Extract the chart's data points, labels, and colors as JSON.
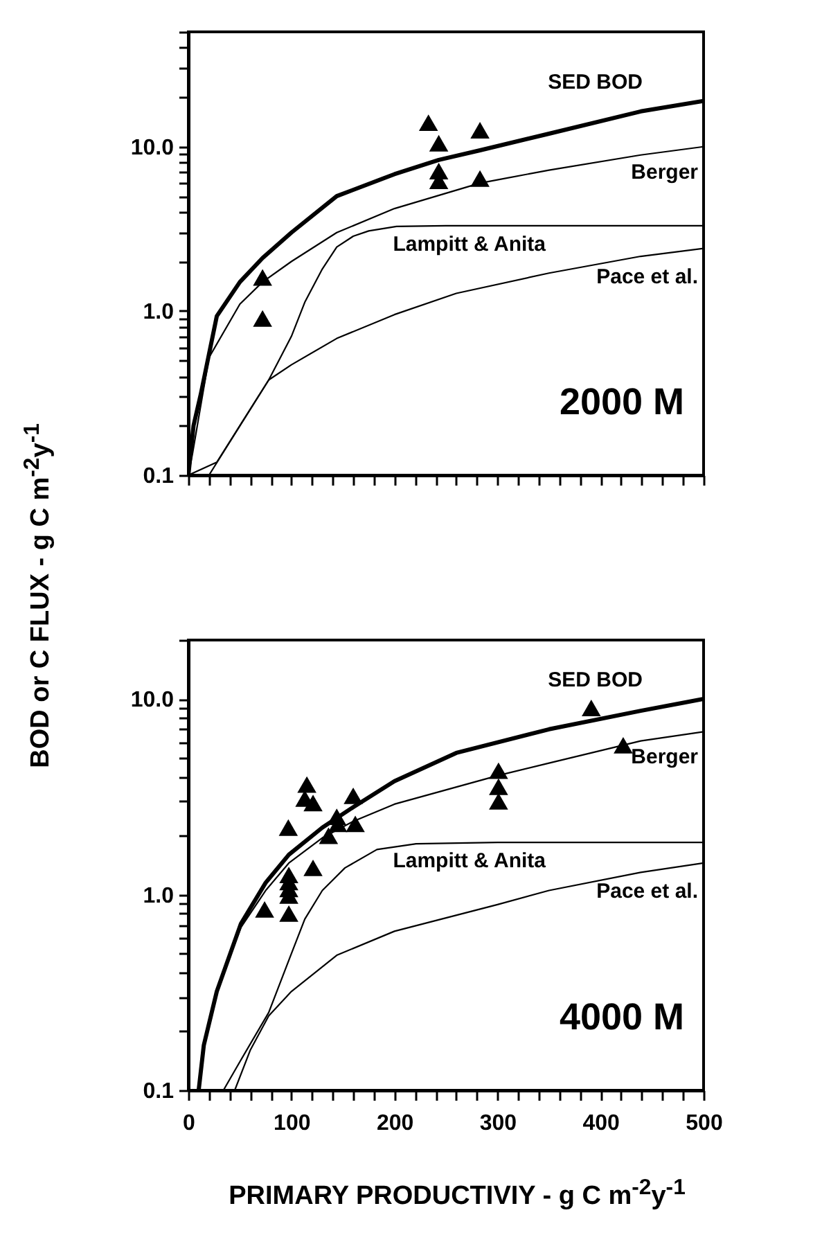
{
  "chart_data": [
    {
      "type": "line",
      "ylabel": "BOD or C FLUX  -  g C m$^{-2}$y$^{-1}$",
      "log": "y",
      "xlim": [
        0,
        500
      ],
      "ylim": [
        0.1,
        50
      ],
      "tick_labels": "y",
      "xticks": [
        0,
        {
          "value": 20,
          "label": null
        },
        {
          "value": 40,
          "label": null
        },
        {
          "value": 60,
          "label": null
        },
        {
          "value": 80,
          "label": null
        },
        100,
        {
          "value": 120,
          "label": null
        },
        {
          "value": 140,
          "label": null
        },
        {
          "value": 160,
          "label": null
        },
        {
          "value": 180,
          "label": null
        },
        200,
        {
          "value": 220,
          "label": null
        },
        {
          "value": 240,
          "label": null
        },
        {
          "value": 260,
          "label": null
        },
        {
          "value": 280,
          "label": null
        },
        300,
        {
          "value": 320,
          "label": null
        },
        {
          "value": 340,
          "label": null
        },
        {
          "value": 360,
          "label": null
        },
        {
          "value": 380,
          "label": null
        },
        400,
        {
          "value": 420,
          "label": null
        },
        {
          "value": 440,
          "label": null
        },
        {
          "value": 460,
          "label": null
        },
        {
          "value": 480,
          "label": null
        },
        500
      ],
      "yticks": [
        0.1,
        {
          "value": 0.2,
          "label": null
        },
        {
          "value": 0.3,
          "label": null
        },
        {
          "value": 0.4,
          "label": null
        },
        {
          "value": 0.5,
          "label": null
        },
        {
          "value": 0.6,
          "label": null
        },
        {
          "value": 0.7,
          "label": null
        },
        {
          "value": 0.8,
          "label": null
        },
        {
          "value": 0.9,
          "label": null
        },
        {
          "value": 1,
          "label": "1.0"
        },
        {
          "value": 2,
          "label": null
        },
        {
          "value": 3,
          "label": null
        },
        {
          "value": 4,
          "label": null
        },
        {
          "value": 5,
          "label": null
        },
        {
          "value": 6,
          "label": null
        },
        {
          "value": 7,
          "label": null
        },
        {
          "value": 8,
          "label": null
        },
        {
          "value": 9,
          "label": null
        },
        {
          "value": 10,
          "label": "10.0"
        },
        {
          "value": 20,
          "label": null
        },
        {
          "value": 30,
          "label": null
        },
        {
          "value": 40,
          "label": null
        },
        {
          "value": 50,
          "label": null
        }
      ],
      "annotations": [
        "2000 M"
      ],
      "series": [
        {
          "name": "SED BOD",
          "type": "line",
          "color": "#000000",
          "x": [
            0,
            5,
            12,
            27.6,
            50,
            72,
            100,
            144,
            200,
            243,
            283,
            350,
            439,
            500
          ],
          "values": [
            0.1,
            0.2,
            0.31,
            0.93,
            1.5,
            2.1,
            3.0,
            5.0,
            6.8,
            8.3,
            9.5,
            12,
            16.4,
            19
          ]
        },
        {
          "name": "Berger",
          "type": "line",
          "color": "#000000",
          "x": [
            0,
            4,
            20,
            50,
            72,
            100,
            144,
            200,
            283,
            350,
            439,
            500
          ],
          "values": [
            0.1,
            0.135,
            0.52,
            1.1,
            1.5,
            2.0,
            3.0,
            4.2,
            6.0,
            7.2,
            8.9,
            10
          ]
        },
        {
          "name": "Lampitt & Anita",
          "type": "line",
          "color": "#000000",
          "x": [
            20,
            50,
            78,
            100,
            113,
            130,
            144,
            160,
            175,
            202,
            250,
            500
          ],
          "values": [
            0.1,
            0.2,
            0.38,
            0.7,
            1.13,
            1.8,
            2.45,
            2.85,
            3.07,
            3.27,
            3.3,
            3.3
          ]
        },
        {
          "name": "Pace et al.",
          "type": "line",
          "color": "#000000",
          "x": [
            0,
            27.6,
            50,
            78,
            100,
            144,
            200,
            260,
            350,
            439,
            500
          ],
          "values": [
            0.1,
            0.12,
            0.2,
            0.38,
            0.47,
            0.68,
            0.95,
            1.28,
            1.7,
            2.15,
            2.4
          ]
        },
        {
          "type": "scatter",
          "marker": "triangle",
          "color": "#000000",
          "x": [
            72,
            72,
            233,
            243,
            243,
            243,
            283,
            283
          ],
          "values": [
            1.6,
            0.9,
            14,
            10.5,
            7.1,
            6.2,
            12.6,
            6.4
          ]
        }
      ]
    },
    {
      "type": "line",
      "xlabel": "PRIMARY PRODUCTIVIY - g C m$^{-2}$y$^{-1}$",
      "log": "y",
      "xlim": [
        0,
        500
      ],
      "ylim": [
        0.1,
        20
      ],
      "xticks": [
        0,
        {
          "value": 20,
          "label": null
        },
        {
          "value": 40,
          "label": null
        },
        {
          "value": 60,
          "label": null
        },
        {
          "value": 80,
          "label": null
        },
        100,
        {
          "value": 120,
          "label": null
        },
        {
          "value": 140,
          "label": null
        },
        {
          "value": 160,
          "label": null
        },
        {
          "value": 180,
          "label": null
        },
        200,
        {
          "value": 220,
          "label": null
        },
        {
          "value": 240,
          "label": null
        },
        {
          "value": 260,
          "label": null
        },
        {
          "value": 280,
          "label": null
        },
        300,
        {
          "value": 320,
          "label": null
        },
        {
          "value": 340,
          "label": null
        },
        {
          "value": 360,
          "label": null
        },
        {
          "value": 380,
          "label": null
        },
        400,
        {
          "value": 420,
          "label": null
        },
        {
          "value": 440,
          "label": null
        },
        {
          "value": 460,
          "label": null
        },
        {
          "value": 480,
          "label": null
        },
        500
      ],
      "yticks": [
        0.1,
        {
          "value": 0.2,
          "label": null
        },
        {
          "value": 0.3,
          "label": null
        },
        {
          "value": 0.4,
          "label": null
        },
        {
          "value": 0.5,
          "label": null
        },
        {
          "value": 0.6,
          "label": null
        },
        {
          "value": 0.7,
          "label": null
        },
        {
          "value": 0.8,
          "label": null
        },
        {
          "value": 0.9,
          "label": null
        },
        {
          "value": 1,
          "label": "1.0"
        },
        {
          "value": 2,
          "label": null
        },
        {
          "value": 3,
          "label": null
        },
        {
          "value": 4,
          "label": null
        },
        {
          "value": 5,
          "label": null
        },
        {
          "value": 6,
          "label": null
        },
        {
          "value": 7,
          "label": null
        },
        {
          "value": 8,
          "label": null
        },
        {
          "value": 9,
          "label": null
        },
        {
          "value": 10,
          "label": "10.0"
        },
        {
          "value": 20,
          "label": null
        }
      ],
      "annotations": [
        "4000 M"
      ],
      "series": [
        {
          "name": "SED BOD",
          "type": "line",
          "color": "#000000",
          "x": [
            10,
            15,
            27.6,
            51,
            75,
            97.5,
            130,
            160,
            200,
            260,
            350,
            439,
            500
          ],
          "values": [
            0.1,
            0.17,
            0.32,
            0.71,
            1.15,
            1.6,
            2.2,
            2.8,
            3.8,
            5.3,
            7.0,
            8.7,
            10
          ]
        },
        {
          "name": "Berger",
          "type": "line",
          "color": "#000000",
          "x": [
            10,
            15,
            27.6,
            51,
            75,
            97.5,
            130,
            160,
            200,
            301,
            350,
            439,
            500
          ],
          "values": [
            0.1,
            0.17,
            0.32,
            0.68,
            1.05,
            1.45,
            1.95,
            2.37,
            2.9,
            4.07,
            4.7,
            6.1,
            6.8
          ]
        },
        {
          "name": "Lampitt & Anita",
          "type": "line",
          "color": "#000000",
          "x": [
            34,
            50,
            78,
            100,
            113,
            130,
            152,
            183,
            221,
            300,
            500
          ],
          "values": [
            0.1,
            0.14,
            0.25,
            0.5,
            0.75,
            1.05,
            1.37,
            1.7,
            1.82,
            1.85,
            1.85
          ]
        },
        {
          "name": "Pace et al.",
          "type": "line",
          "color": "#000000",
          "x": [
            45,
            60,
            78,
            100,
            144,
            200,
            300,
            350,
            439,
            500
          ],
          "values": [
            0.1,
            0.16,
            0.24,
            0.32,
            0.49,
            0.65,
            0.89,
            1.05,
            1.3,
            1.45
          ]
        },
        {
          "type": "scatter",
          "marker": "triangle",
          "color": "#000000",
          "x": [
            74,
            97.5,
            97.5,
            97.5,
            97.5,
            97.5,
            97,
            121,
            115,
            113,
            121,
            136,
            144,
            145,
            160,
            162,
            301,
            301,
            301,
            391,
            422
          ],
          "values": [
            0.84,
            0.8,
            0.99,
            1.07,
            1.16,
            1.26,
            2.2,
            1.37,
            3.65,
            3.1,
            2.94,
            2.0,
            2.5,
            2.3,
            3.2,
            2.3,
            4.3,
            3.56,
            3.0,
            9.0,
            5.8
          ]
        }
      ]
    }
  ]
}
